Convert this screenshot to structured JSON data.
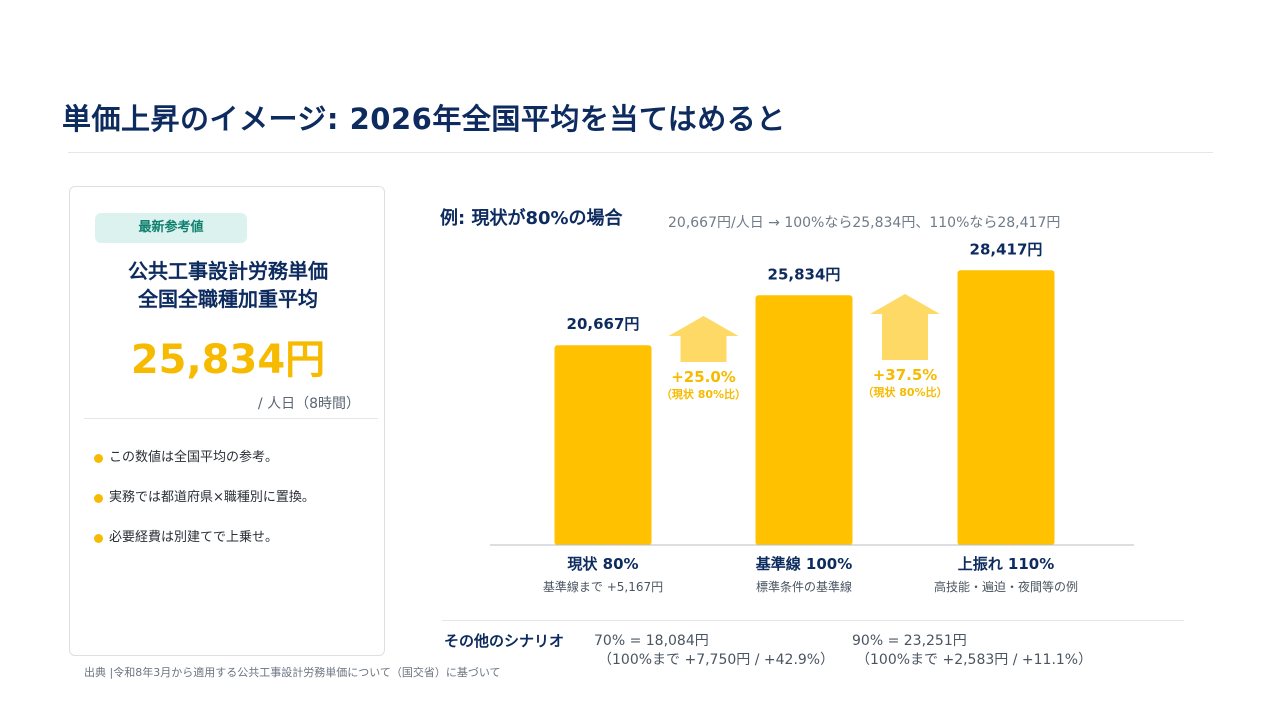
{
  "title": "単価上昇のイメージ: 2026年全国平均を当てはめると",
  "card": {
    "badge": "最新参考値",
    "title_line1": "公共工事設計労務単価",
    "title_line2": "全国全職種加重平均",
    "value": "25,834円",
    "unit": "/ 人日（8時間）",
    "notes": [
      "この数値は全国平均の参考。",
      "実務では都道府県×職種別に置換。",
      "必要経費は別建てで上乗せ。"
    ]
  },
  "source": "出典 |令和8年3月から適用する公共工事設計労務単価について（国交省）に基づいて",
  "chart_header": {
    "title": "例: 現状が80%の場合",
    "subtitle": "20,667円/人日 → 100%なら25,834円、110%なら28,417円"
  },
  "colors": {
    "bar": "#ffc100",
    "arrow": "#ffd966",
    "accent": "#f6bb00",
    "navy": "#0d2b5e"
  },
  "chart_data": {
    "type": "bar",
    "categories": [
      "現状 80%",
      "基準線 100%",
      "上振れ 110%"
    ],
    "category_notes": [
      "基準線まで +5,167円",
      "標準条件の基準線",
      "高技能・遍迫・夜間等の例"
    ],
    "values": [
      20667,
      25834,
      28417
    ],
    "data_labels": [
      "20,667円",
      "25,834円",
      "28,417円"
    ],
    "ylim": [
      0,
      30000
    ],
    "grid": false,
    "annotations": [
      {
        "between": [
          0,
          1
        ],
        "label": "+25.0%",
        "sublabel": "（現状 80%比）"
      },
      {
        "between": [
          1,
          2
        ],
        "label": "+37.5%",
        "sublabel": "（現状 80%比）"
      }
    ]
  },
  "scenarios": {
    "label": "その他のシナリオ",
    "items": [
      {
        "line1": "70% = 18,084円",
        "line2": "（100%まで +7,750円 / +42.9%）"
      },
      {
        "line1": "90% = 23,251円",
        "line2": "（100%まで +2,583円 / +11.1%）"
      }
    ]
  }
}
